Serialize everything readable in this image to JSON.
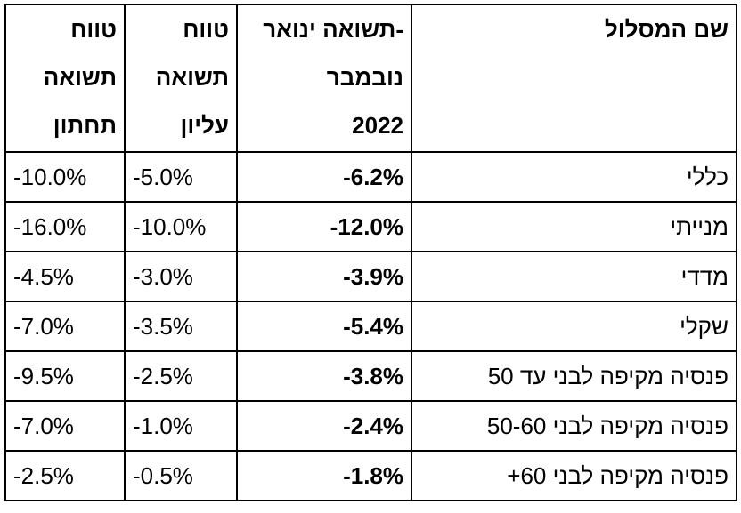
{
  "headers": {
    "lower": [
      "טווח",
      "תשואה",
      "תחתון"
    ],
    "upper": [
      "טווח",
      "תשואה",
      "עליון"
    ],
    "ytd": [
      "תשואה ינואר-",
      "נובמבר",
      "2022"
    ],
    "name": [
      "שם המסלול"
    ]
  },
  "rows": [
    {
      "name": "כללי",
      "ytd": "-6.2%",
      "upper": "-5.0%",
      "lower": "-10.0%"
    },
    {
      "name": "מנייתי",
      "ytd": "-12.0%",
      "upper": "-10.0%",
      "lower": "-16.0%"
    },
    {
      "name": "מדדי",
      "ytd": "-3.9%",
      "upper": "-3.0%",
      "lower": "-4.5%"
    },
    {
      "name": "שקלי",
      "ytd": "-5.4%",
      "upper": "-3.5%",
      "lower": "-7.0%"
    },
    {
      "name": "פנסיה מקיפה לבני עד 50",
      "ytd": "-3.8%",
      "upper": "-2.5%",
      "lower": "-9.5%"
    },
    {
      "name": "פנסיה מקיפה לבני 50-60",
      "ytd": "-2.4%",
      "upper": "-1.0%",
      "lower": "-7.0%"
    },
    {
      "name": "פנסיה מקיפה לבני 60+",
      "ytd": "-1.8%",
      "upper": "-0.5%",
      "lower": "-2.5%"
    }
  ]
}
